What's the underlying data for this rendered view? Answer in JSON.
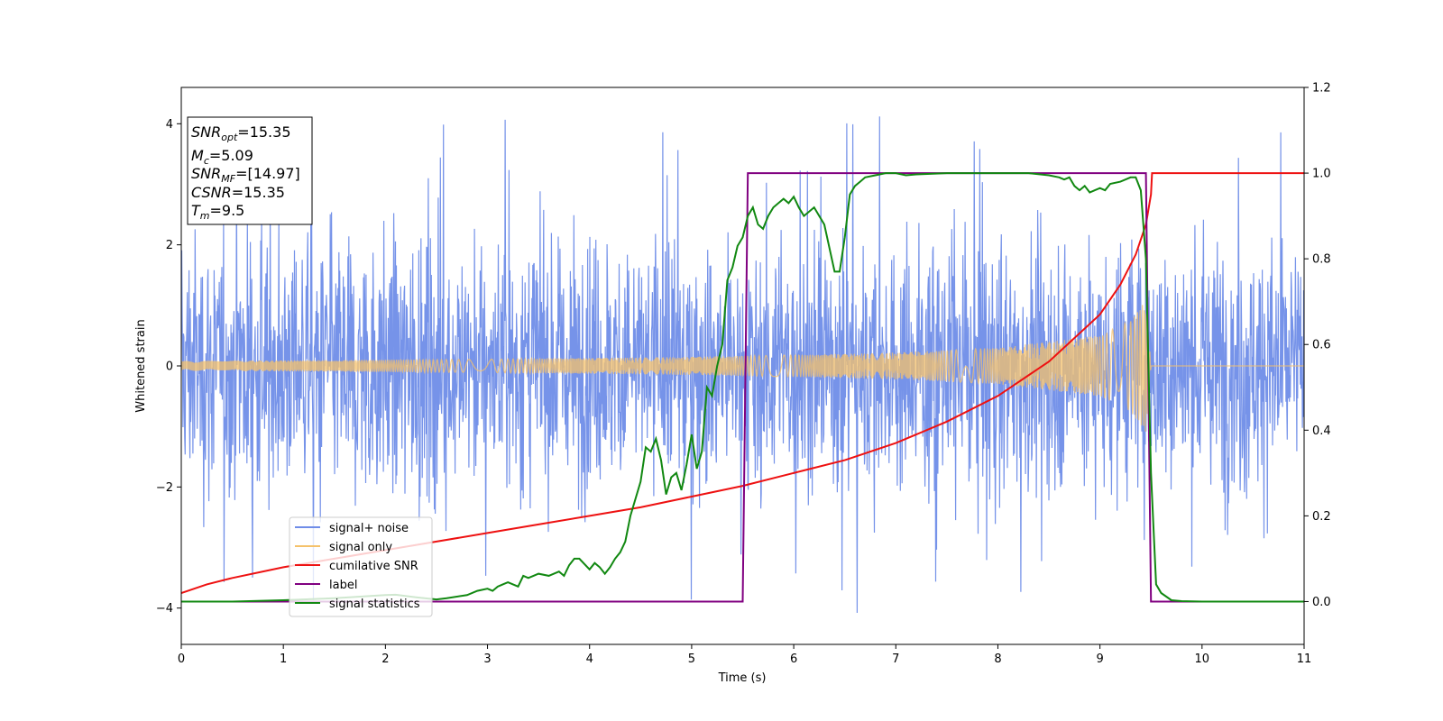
{
  "chart_data": {
    "type": "line",
    "xlabel": "Time (s)",
    "ylabel": "Whitened strain",
    "xlim": [
      0,
      11
    ],
    "ylim": [
      -4.6,
      4.6
    ],
    "y2lim": [
      -0.1,
      1.2
    ],
    "xticks": [
      "0",
      "1",
      "2",
      "3",
      "4",
      "5",
      "6",
      "7",
      "8",
      "9",
      "10",
      "11"
    ],
    "yticks": [
      "−4",
      "−2",
      "0",
      "2",
      "4"
    ],
    "y2ticks": [
      "0.0",
      "0.2",
      "0.4",
      "0.6",
      "0.8",
      "1.0",
      "1.2"
    ],
    "grid": false,
    "legend_position": "lower-left",
    "info_box": {
      "snr_opt": {
        "sym": "SNR",
        "sub": "opt",
        "val": "=15.35"
      },
      "mc": {
        "sym": "M",
        "sub": "c",
        "val": "=5.09"
      },
      "snr_mf": {
        "sym": "SNR",
        "sub": "MF",
        "val": "=[14.97]"
      },
      "csnr": {
        "sym": "CSNR",
        "sub": "",
        "val": "=15.35"
      },
      "tm": {
        "sym": "T",
        "sub": "m",
        "val": "=9.5"
      }
    },
    "series": [
      {
        "name": "signal+ noise",
        "color": "#6f8de8",
        "axis": "left",
        "kind": "noise",
        "noise_std": 1.05,
        "noise_peak": 4.2,
        "x_range": [
          0,
          11
        ]
      },
      {
        "name": "signal only",
        "color": "#f5c26b",
        "axis": "left",
        "kind": "chirp",
        "amp_envelope": {
          "x": [
            0,
            1,
            2,
            3,
            4,
            5,
            6,
            7,
            8,
            9,
            9.3,
            9.45,
            9.5
          ],
          "y": [
            0.08,
            0.09,
            0.1,
            0.11,
            0.13,
            0.15,
            0.18,
            0.22,
            0.3,
            0.5,
            0.75,
            1.1,
            0.0
          ]
        },
        "merger_time": 9.5
      },
      {
        "name": "cumilative SNR",
        "color": "#ee1111",
        "axis": "right",
        "x": [
          0,
          0.25,
          0.5,
          1,
          1.5,
          2,
          2.5,
          3,
          3.5,
          4,
          4.5,
          5,
          5.5,
          6,
          6.5,
          7,
          7.5,
          8,
          8.5,
          9,
          9.2,
          9.35,
          9.45,
          9.5,
          9.51,
          11
        ],
        "y": [
          0.02,
          0.04,
          0.055,
          0.08,
          0.1,
          0.12,
          0.14,
          0.16,
          0.18,
          0.2,
          0.22,
          0.245,
          0.27,
          0.3,
          0.33,
          0.37,
          0.42,
          0.48,
          0.56,
          0.67,
          0.74,
          0.81,
          0.88,
          0.95,
          1.0,
          1.0
        ]
      },
      {
        "name": "label",
        "color": "#800080",
        "axis": "right",
        "x": [
          0,
          5.5,
          5.55,
          9.45,
          9.5,
          11
        ],
        "y": [
          0,
          0,
          1,
          1,
          0,
          0
        ]
      },
      {
        "name": "signal statistics",
        "color": "#118811",
        "axis": "right",
        "x": [
          0,
          0.5,
          1,
          1.5,
          2,
          2.1,
          2.3,
          2.5,
          2.6,
          2.8,
          2.9,
          3,
          3.05,
          3.1,
          3.15,
          3.2,
          3.3,
          3.35,
          3.4,
          3.45,
          3.5,
          3.6,
          3.7,
          3.75,
          3.8,
          3.85,
          3.9,
          4,
          4.05,
          4.1,
          4.15,
          4.2,
          4.25,
          4.3,
          4.35,
          4.4,
          4.5,
          4.55,
          4.6,
          4.65,
          4.7,
          4.75,
          4.8,
          4.85,
          4.9,
          4.95,
          5,
          5.05,
          5.1,
          5.15,
          5.2,
          5.25,
          5.3,
          5.35,
          5.4,
          5.45,
          5.5,
          5.55,
          5.6,
          5.65,
          5.7,
          5.75,
          5.8,
          5.85,
          5.9,
          5.95,
          6,
          6.05,
          6.1,
          6.2,
          6.3,
          6.4,
          6.45,
          6.5,
          6.55,
          6.6,
          6.65,
          6.7,
          6.8,
          6.9,
          7,
          7.1,
          7.2,
          7.5,
          8,
          8.3,
          8.5,
          8.6,
          8.65,
          8.7,
          8.75,
          8.8,
          8.85,
          8.9,
          8.95,
          9,
          9.05,
          9.1,
          9.2,
          9.3,
          9.35,
          9.4,
          9.45,
          9.5,
          9.55,
          9.6,
          9.7,
          9.8,
          10,
          11
        ],
        "y": [
          0,
          0,
          0.003,
          0.008,
          0.015,
          0.016,
          0.01,
          0.005,
          0.008,
          0.015,
          0.025,
          0.03,
          0.025,
          0.035,
          0.04,
          0.045,
          0.035,
          0.06,
          0.055,
          0.06,
          0.065,
          0.06,
          0.07,
          0.06,
          0.085,
          0.1,
          0.1,
          0.075,
          0.09,
          0.08,
          0.065,
          0.08,
          0.1,
          0.115,
          0.14,
          0.2,
          0.28,
          0.36,
          0.35,
          0.38,
          0.33,
          0.25,
          0.29,
          0.3,
          0.26,
          0.32,
          0.39,
          0.31,
          0.35,
          0.5,
          0.48,
          0.55,
          0.6,
          0.75,
          0.78,
          0.83,
          0.85,
          0.9,
          0.92,
          0.88,
          0.87,
          0.9,
          0.92,
          0.93,
          0.94,
          0.93,
          0.945,
          0.92,
          0.9,
          0.92,
          0.88,
          0.77,
          0.77,
          0.85,
          0.95,
          0.97,
          0.98,
          0.99,
          0.995,
          1.0,
          1.0,
          0.995,
          0.997,
          1.0,
          1.0,
          1.0,
          0.995,
          0.99,
          0.985,
          0.99,
          0.97,
          0.96,
          0.97,
          0.955,
          0.96,
          0.965,
          0.96,
          0.975,
          0.98,
          0.99,
          0.99,
          0.96,
          0.8,
          0.3,
          0.04,
          0.02,
          0.003,
          0.001,
          0,
          0
        ]
      }
    ]
  }
}
